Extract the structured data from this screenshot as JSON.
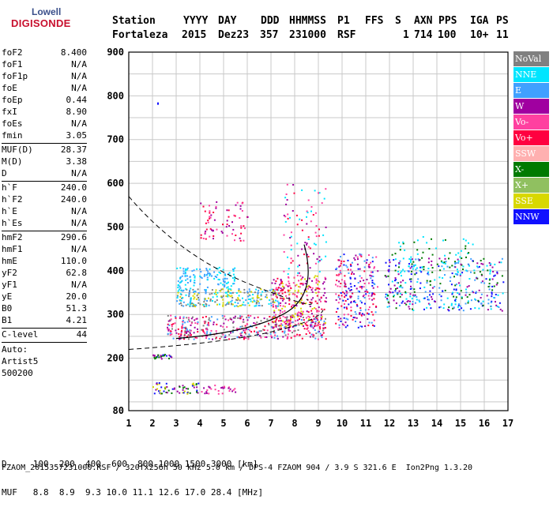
{
  "logo": {
    "line1": "Lowell",
    "line2": "DIGISONDE"
  },
  "header": {
    "labels": [
      "Station",
      "YYYY",
      "DAY",
      "DDD",
      "HHMMSS",
      "P1",
      "FFS",
      "S",
      "AXN",
      "PPS",
      "IGA",
      "PS"
    ],
    "values": [
      "Fortaleza",
      "2015",
      "Dez23",
      "357",
      "231000",
      "RSF",
      "",
      "1",
      "714",
      "100",
      "10+",
      "11"
    ]
  },
  "params": {
    "group1": [
      {
        "k": "foF2",
        "v": "8.400"
      },
      {
        "k": "foF1",
        "v": "N/A"
      },
      {
        "k": "foF1p",
        "v": "N/A"
      },
      {
        "k": "foE",
        "v": "N/A"
      },
      {
        "k": "foEp",
        "v": "0.44"
      },
      {
        "k": "fxI",
        "v": "8.90"
      },
      {
        "k": "foEs",
        "v": "N/A"
      },
      {
        "k": "fmin",
        "v": "3.05"
      }
    ],
    "group2": [
      {
        "k": "MUF(D)",
        "v": "28.37"
      },
      {
        "k": "M(D)",
        "v": "3.38"
      },
      {
        "k": "D",
        "v": "N/A"
      }
    ],
    "group3": [
      {
        "k": "h`F",
        "v": "240.0"
      },
      {
        "k": "h`F2",
        "v": "240.0"
      },
      {
        "k": "h`E",
        "v": "N/A"
      },
      {
        "k": "h`Es",
        "v": "N/A"
      }
    ],
    "group4": [
      {
        "k": "hmF2",
        "v": "290.6"
      },
      {
        "k": "hmF1",
        "v": "N/A"
      },
      {
        "k": "hmE",
        "v": "110.0"
      },
      {
        "k": "yF2",
        "v": "62.8"
      },
      {
        "k": "yF1",
        "v": "N/A"
      },
      {
        "k": "yE",
        "v": "20.0"
      },
      {
        "k": "B0",
        "v": "51.3"
      },
      {
        "k": "B1",
        "v": "4.21"
      }
    ],
    "group5": [
      {
        "k": "C-level",
        "v": "44"
      }
    ],
    "auto": [
      "Auto:",
      "Artist5",
      "500200"
    ]
  },
  "legend": [
    {
      "label": "NoVal",
      "color": "#808080"
    },
    {
      "label": "NNE",
      "color": "#00e5ff"
    },
    {
      "label": "E",
      "color": "#40a0ff"
    },
    {
      "label": "W",
      "color": "#a000a0"
    },
    {
      "label": "Vo-",
      "color": "#ff40a0"
    },
    {
      "label": "Vo+",
      "color": "#ff0040"
    },
    {
      "label": "SSW",
      "color": "#ffb0b0"
    },
    {
      "label": "X-",
      "color": "#007a00"
    },
    {
      "label": "X+",
      "color": "#90c060"
    },
    {
      "label": "SSE",
      "color": "#d8d800"
    },
    {
      "label": "NNW",
      "color": "#1010ff"
    }
  ],
  "chart_data": {
    "type": "scatter",
    "xlim": [
      1,
      17
    ],
    "ylim": [
      80,
      900
    ],
    "xticks": [
      "1",
      "2",
      "3",
      "4",
      "5",
      "6",
      "7",
      "8",
      "9",
      "10",
      "11",
      "12",
      "13",
      "14",
      "15",
      "16",
      "17"
    ],
    "yticks": [
      "80",
      "200",
      "300",
      "400",
      "500",
      "600",
      "700",
      "800",
      "900"
    ],
    "grid": true
  },
  "bottom": {
    "line1": "D     100  200  400  600  800 1000 1500 3000 [km]",
    "line2": "MUF   8.8  8.9  9.3 10.0 11.1 12.6 17.0 28.4 [MHz]"
  },
  "footer": "FZAOM_2015357231000.RSF / 320fx256h 50 kHz 5.0 km / DPS-4 FZAOM 904 / 3.9 S 321.6 E  Ion2Png 1.3.20"
}
